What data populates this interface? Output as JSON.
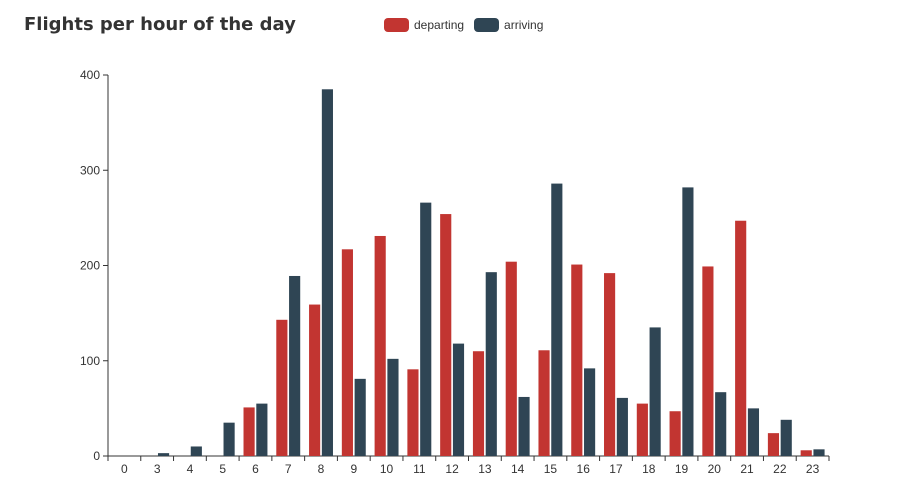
{
  "chart_data": {
    "type": "bar",
    "title": "Flights per hour of the day",
    "xlabel": "",
    "ylabel": "",
    "categories": [
      "0",
      "3",
      "4",
      "5",
      "6",
      "7",
      "8",
      "9",
      "10",
      "11",
      "12",
      "13",
      "14",
      "15",
      "16",
      "17",
      "18",
      "19",
      "20",
      "21",
      "22",
      "23"
    ],
    "series": [
      {
        "name": "departing",
        "color": "#c23531",
        "values": [
          0,
          0,
          0,
          0,
          51,
          143,
          159,
          217,
          231,
          91,
          254,
          110,
          204,
          111,
          201,
          192,
          55,
          47,
          199,
          247,
          24,
          6
        ]
      },
      {
        "name": "arriving",
        "color": "#2f4554",
        "values": [
          0,
          3,
          10,
          35,
          55,
          189,
          385,
          81,
          102,
          266,
          118,
          193,
          62,
          286,
          92,
          61,
          135,
          282,
          67,
          50,
          38,
          7
        ]
      }
    ],
    "ylim": [
      0,
      400
    ],
    "yticks": [
      0,
      100,
      200,
      300,
      400
    ],
    "grid": false,
    "legend_position": "top-center"
  }
}
